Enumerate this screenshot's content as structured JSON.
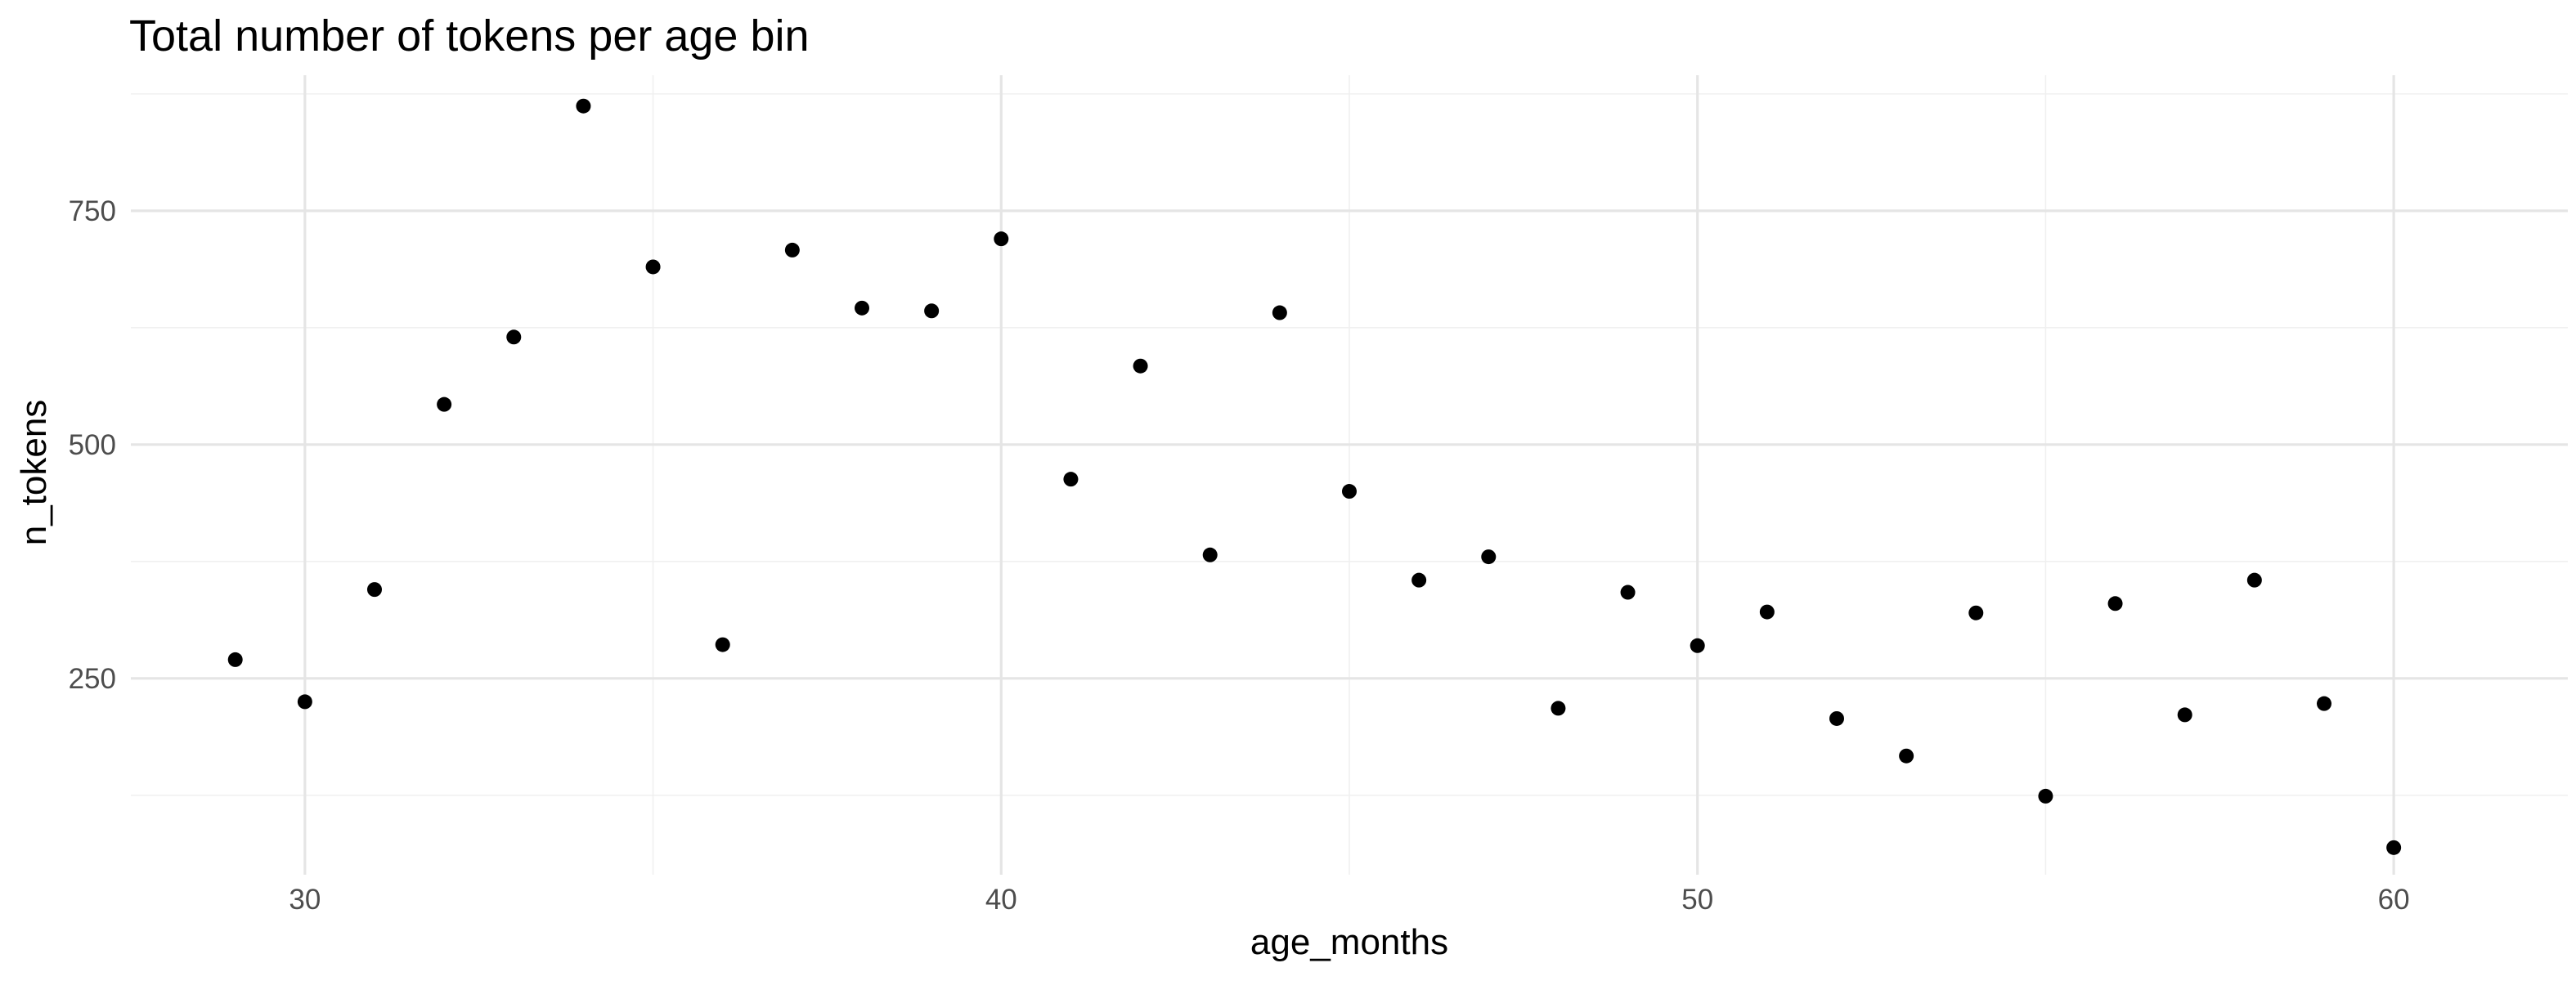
{
  "chart_data": {
    "type": "scatter",
    "title": "Total number of tokens per age bin",
    "xlabel": "age_months",
    "ylabel": "n_tokens",
    "xlim": [
      27.5,
      62.5
    ],
    "ylim": [
      40,
      895
    ],
    "x_major_ticks": [
      30,
      40,
      50,
      60
    ],
    "x_minor_ticks": [
      35,
      45,
      55
    ],
    "y_major_ticks": [
      250,
      500,
      750
    ],
    "y_minor_ticks": [
      125,
      375,
      625,
      875
    ],
    "x_tick_labels": [
      "30",
      "40",
      "50",
      "60"
    ],
    "y_tick_labels": [
      "250",
      "500",
      "750"
    ],
    "grid": true,
    "legend": "none",
    "point_color": "#000000",
    "x": [
      29,
      30,
      31,
      32,
      33,
      34,
      35,
      36,
      37,
      38,
      39,
      40,
      41,
      42,
      43,
      44,
      45,
      46,
      47,
      48,
      49,
      50,
      51,
      52,
      53,
      54,
      55,
      56,
      57,
      58,
      59,
      60
    ],
    "y": [
      270,
      225,
      345,
      543,
      615,
      862,
      690,
      286,
      708,
      646,
      643,
      720,
      463,
      584,
      382,
      641,
      450,
      355,
      380,
      218,
      342,
      285,
      321,
      207,
      167,
      320,
      124,
      330,
      211,
      355,
      223,
      69
    ]
  }
}
